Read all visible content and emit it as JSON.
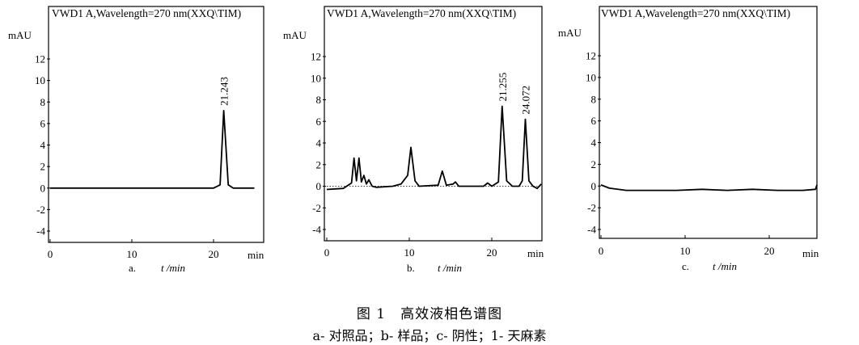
{
  "figure": {
    "title": "图 1　高效液相色谱图",
    "legend": "a- 对照品；b- 样品；c- 阴性；1- 天麻素"
  },
  "chart_data": [
    {
      "type": "line",
      "panel_label": "a.",
      "title": "VWD1 A,Wavelength=270 nm(XXQ\\TIM)",
      "xlabel": "t /min",
      "ylabel": "mAU",
      "x_unit": "min",
      "xlim": [
        0,
        25
      ],
      "ylim": [
        -5,
        14
      ],
      "xticks": [
        0,
        10,
        20
      ],
      "yticks": [
        -4,
        -2,
        0,
        2,
        4,
        6,
        8,
        10,
        12
      ],
      "x_tick_labels": [
        "0",
        "10",
        "20"
      ],
      "y_tick_labels": [
        "-4",
        "-2",
        "0",
        "2",
        "4",
        "6",
        "8",
        "10",
        "12"
      ],
      "annotations": [
        {
          "text": "21.243",
          "x": 21.243,
          "y": 7.2
        }
      ],
      "series": [
        {
          "x": [
            0,
            20,
            20.8,
            21.243,
            21.8,
            22.4,
            25
          ],
          "y": [
            0,
            0,
            0.3,
            7.2,
            0.3,
            0,
            0
          ]
        }
      ]
    },
    {
      "type": "line",
      "panel_label": "b.",
      "title": "VWD1 A,Wavelength=270 nm(XXQ\\TIM)",
      "xlabel": "t /min",
      "ylabel": "mAU",
      "x_unit": "min",
      "xlim": [
        0,
        26
      ],
      "ylim": [
        -5,
        14
      ],
      "xticks": [
        0,
        10,
        20
      ],
      "yticks": [
        -4,
        -2,
        0,
        2,
        4,
        6,
        8,
        10,
        12
      ],
      "x_tick_labels": [
        "0",
        "10",
        "20"
      ],
      "y_tick_labels": [
        "-4",
        "-2",
        "0",
        "2",
        "4",
        "6",
        "8",
        "10",
        "12"
      ],
      "annotations": [
        {
          "text": "21.255",
          "x": 21.255,
          "y": 7.4
        },
        {
          "text": "24.072",
          "x": 24.072,
          "y": 6.2
        }
      ],
      "series": [
        {
          "x": [
            0,
            2,
            3.0,
            3.3,
            3.6,
            3.9,
            4.2,
            4.5,
            4.8,
            5.1,
            5.5,
            6.0,
            8.0,
            9.0,
            9.8,
            10.2,
            10.7,
            11.2,
            13.5,
            14.0,
            14.5,
            15.3,
            15.6,
            16.0,
            19.0,
            19.5,
            20.0,
            20.8,
            21.255,
            21.8,
            22.5,
            23.3,
            23.7,
            24.072,
            24.5,
            25.0,
            25.5,
            26.0
          ],
          "y": [
            -0.3,
            -0.2,
            0.3,
            2.6,
            0.5,
            2.6,
            0.4,
            1.0,
            0.2,
            0.6,
            0.0,
            -0.1,
            0.0,
            0.2,
            1.0,
            3.6,
            0.5,
            0.0,
            0.1,
            1.4,
            0.1,
            0.2,
            0.4,
            0.0,
            0.0,
            0.3,
            0.0,
            0.4,
            7.4,
            0.5,
            0.0,
            0.0,
            0.5,
            6.2,
            0.5,
            0.0,
            -0.2,
            0.2
          ]
        }
      ]
    },
    {
      "type": "line",
      "panel_label": "c.",
      "title": "VWD1 A,Wavelength=270 nm(XXQ\\TIM)",
      "xlabel": "t /min",
      "ylabel": "mAU",
      "x_unit": "min",
      "xlim": [
        0,
        26
      ],
      "ylim": [
        -5,
        14
      ],
      "xticks": [
        0,
        10,
        20
      ],
      "yticks": [
        -4,
        -2,
        0,
        2,
        4,
        6,
        8,
        10,
        12
      ],
      "x_tick_labels": [
        "0",
        "10",
        "20"
      ],
      "y_tick_labels": [
        "-4",
        "-2",
        "0",
        "2",
        "4",
        "6",
        "8",
        "10",
        "12"
      ],
      "annotations": [],
      "series": [
        {
          "x": [
            0,
            1,
            3,
            6,
            9,
            12,
            15,
            18,
            21,
            24,
            25.5,
            26
          ],
          "y": [
            0.1,
            -0.2,
            -0.4,
            -0.4,
            -0.4,
            -0.3,
            -0.4,
            -0.3,
            -0.4,
            -0.4,
            -0.3,
            0.1
          ]
        }
      ]
    }
  ]
}
